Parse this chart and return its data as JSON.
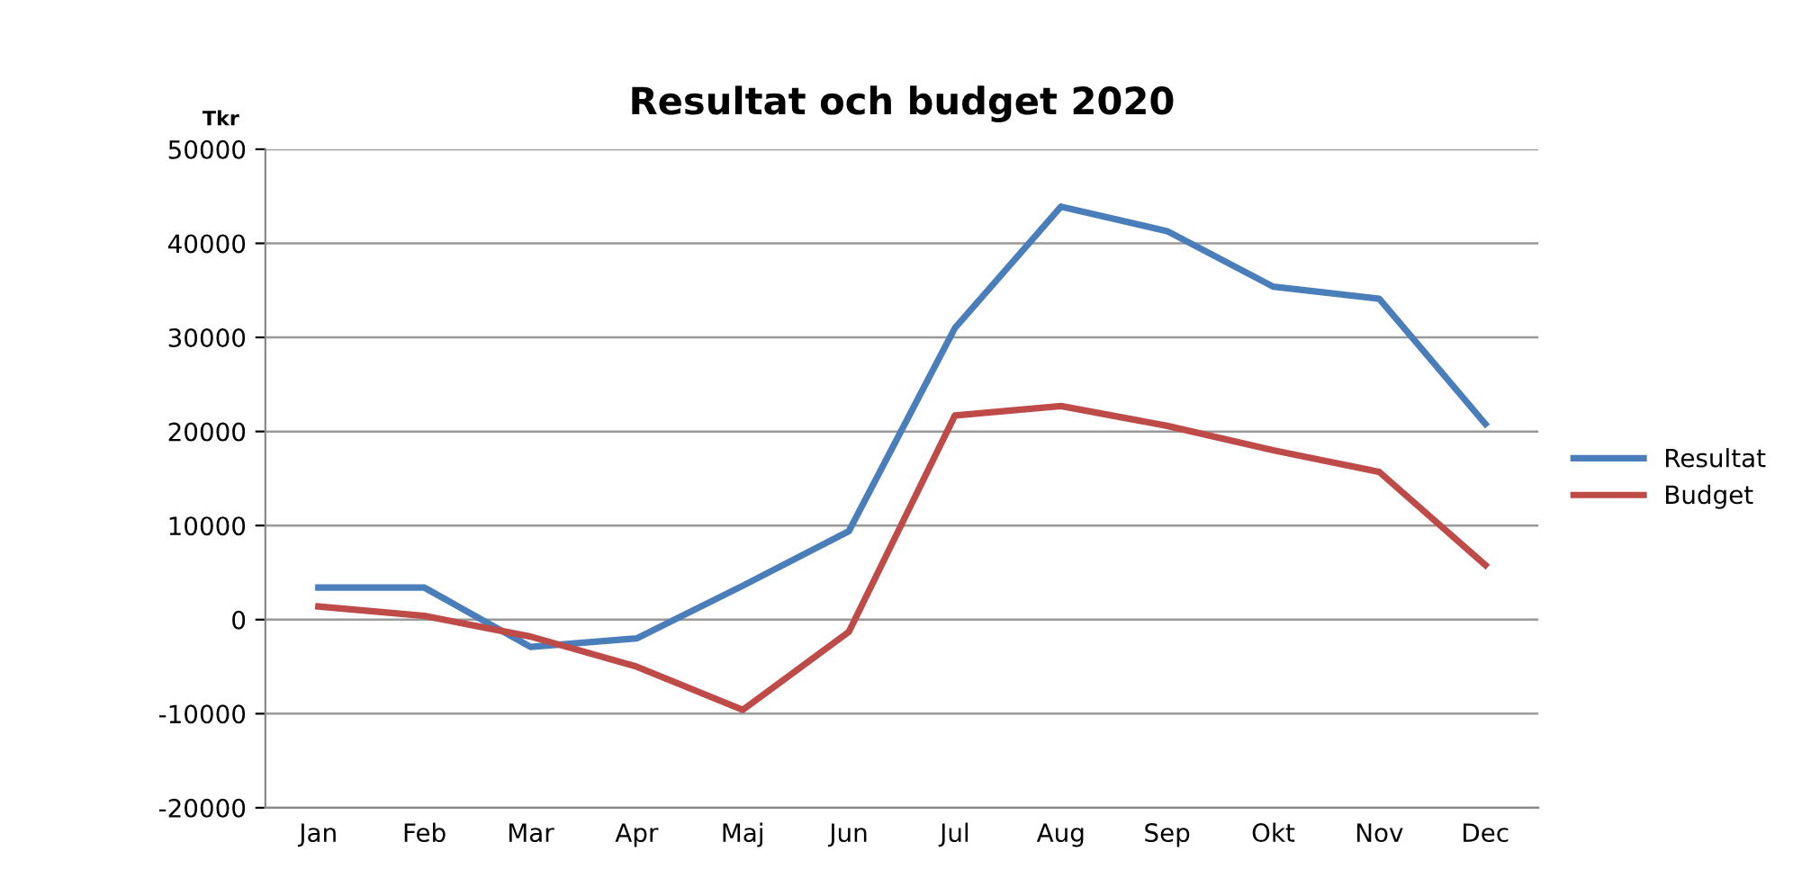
{
  "chart_data": {
    "type": "line",
    "title": "Resultat och budget 2020",
    "ylabel": "Tkr",
    "categories": [
      "Jan",
      "Feb",
      "Mar",
      "Apr",
      "Maj",
      "Jun",
      "Jul",
      "Aug",
      "Sep",
      "Okt",
      "Nov",
      "Dec"
    ],
    "series": [
      {
        "name": "Resultat",
        "color": "#4a7ebb",
        "values": [
          3400,
          3400,
          -2900,
          -2000,
          3600,
          9400,
          31000,
          43900,
          41300,
          35400,
          34100,
          20800
        ]
      },
      {
        "name": "Budget",
        "color": "#be4b48",
        "values": [
          1400,
          400,
          -1800,
          -5000,
          -9600,
          -1300,
          21700,
          22700,
          20600,
          18000,
          15700,
          5800
        ]
      }
    ],
    "ylim": [
      -20000,
      50000
    ],
    "yticks": [
      -20000,
      -10000,
      0,
      10000,
      20000,
      30000,
      40000,
      50000
    ],
    "grid": "y",
    "legend": "right",
    "marker": "none",
    "line_style": "solid"
  }
}
